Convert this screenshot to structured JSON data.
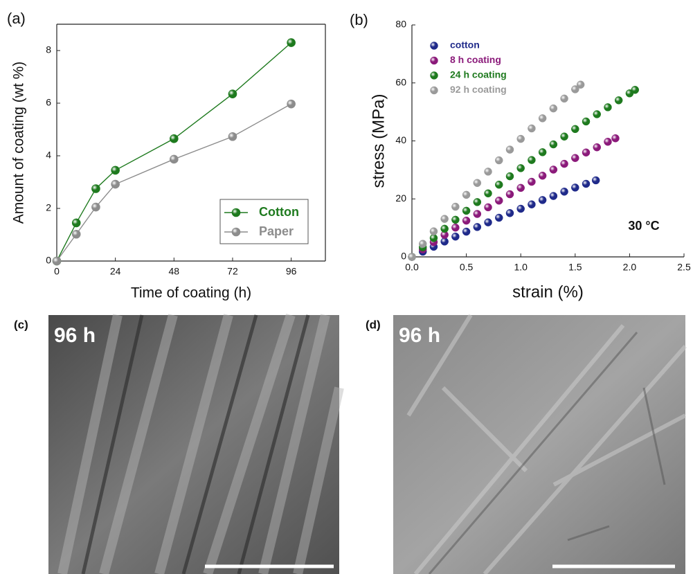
{
  "chart_data": [
    {
      "type": "line",
      "panel_label": "(a)",
      "x_label": "Time of coating (h)",
      "y_label": "Amount of coating (wt %)",
      "x": [
        0,
        8,
        16,
        24,
        48,
        72,
        96
      ],
      "series": [
        {
          "name": "Cotton",
          "color": "#1e7a1e",
          "values": [
            0,
            1.45,
            2.75,
            3.45,
            4.65,
            6.35,
            8.3
          ]
        },
        {
          "name": "Paper",
          "color": "#8c8c8c",
          "values": [
            0,
            1.02,
            2.05,
            2.92,
            3.87,
            4.73,
            5.97
          ]
        }
      ],
      "xlim": [
        0,
        110
      ],
      "xticks": [
        0,
        24,
        48,
        72,
        96
      ],
      "ylim": [
        0,
        9
      ],
      "yticks": [
        0,
        2,
        4,
        6,
        8
      ],
      "legend": "lower right"
    },
    {
      "type": "scatter",
      "panel_label": "(b)",
      "x_label": "strain (%)",
      "y_label": "stress (MPa)",
      "annotation": "30 °C",
      "series": [
        {
          "name": "cotton",
          "color": "#1f2a8a",
          "x": [
            0,
            0.1,
            0.2,
            0.3,
            0.4,
            0.5,
            0.6,
            0.7,
            0.8,
            0.9,
            1.0,
            1.1,
            1.2,
            1.3,
            1.4,
            1.5,
            1.6,
            1.69
          ],
          "values": [
            0,
            1.8,
            3.5,
            5.3,
            7.0,
            8.7,
            10.3,
            11.9,
            13.5,
            15.1,
            16.6,
            18.1,
            19.6,
            21.0,
            22.5,
            23.9,
            25.2,
            26.4
          ]
        },
        {
          "name": "8 h coating",
          "color": "#8b1a7a",
          "x": [
            0,
            0.1,
            0.2,
            0.3,
            0.4,
            0.5,
            0.6,
            0.7,
            0.8,
            0.9,
            1.0,
            1.1,
            1.2,
            1.3,
            1.4,
            1.5,
            1.6,
            1.7,
            1.8,
            1.87
          ],
          "values": [
            0,
            2.6,
            5.1,
            7.6,
            10.1,
            12.5,
            14.8,
            17.1,
            19.4,
            21.6,
            23.8,
            25.9,
            28.0,
            30.1,
            32.1,
            34.1,
            36.0,
            37.8,
            39.7,
            40.9
          ]
        },
        {
          "name": "24 h coating",
          "color": "#1e7a1e",
          "x": [
            0,
            0.1,
            0.2,
            0.3,
            0.4,
            0.5,
            0.6,
            0.7,
            0.8,
            0.9,
            1.0,
            1.1,
            1.2,
            1.3,
            1.4,
            1.5,
            1.6,
            1.7,
            1.8,
            1.9,
            2.0,
            2.05
          ],
          "values": [
            0,
            3.3,
            6.5,
            9.7,
            12.8,
            15.9,
            18.9,
            21.9,
            24.9,
            27.8,
            30.6,
            33.4,
            36.1,
            38.8,
            41.5,
            44.1,
            46.7,
            49.2,
            51.6,
            54.0,
            56.4,
            57.6
          ]
        },
        {
          "name": "92 h coating",
          "color": "#9a9a9a",
          "x": [
            0,
            0.1,
            0.2,
            0.3,
            0.4,
            0.5,
            0.6,
            0.7,
            0.8,
            0.9,
            1.0,
            1.1,
            1.2,
            1.3,
            1.4,
            1.5,
            1.55
          ],
          "values": [
            0,
            4.5,
            8.8,
            13.1,
            17.3,
            21.4,
            25.5,
            29.4,
            33.3,
            37.0,
            40.7,
            44.3,
            47.8,
            51.2,
            54.6,
            57.8,
            59.4
          ]
        }
      ],
      "xlim": [
        0,
        2.5
      ],
      "xticks": [
        {
          "value": 0,
          "label": "0.0"
        },
        0.5,
        {
          "value": 1,
          "label": "1.0"
        },
        1.5,
        {
          "value": 2,
          "label": "2.0"
        },
        2.5
      ],
      "ylim": [
        0,
        80
      ],
      "yticks": [
        0,
        20,
        40,
        60,
        80
      ],
      "legend": "upper left"
    }
  ],
  "images": [
    {
      "panel_label": "(c)",
      "caption": "96 h"
    },
    {
      "panel_label": "(d)",
      "caption": "96 h"
    }
  ]
}
